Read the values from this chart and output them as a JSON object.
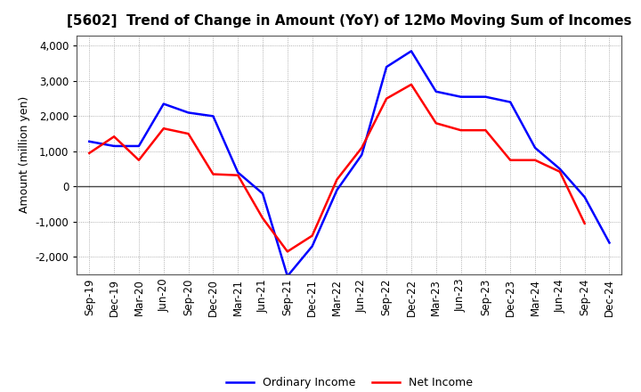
{
  "title": "[5602]  Trend of Change in Amount (YoY) of 12Mo Moving Sum of Incomes",
  "xlabel": "",
  "ylabel": "Amount (million yen)",
  "ylim": [
    -2500,
    4300
  ],
  "yticks": [
    -2000,
    -1000,
    0,
    1000,
    2000,
    3000,
    4000
  ],
  "x_labels": [
    "Sep-19",
    "Dec-19",
    "Mar-20",
    "Jun-20",
    "Sep-20",
    "Dec-20",
    "Mar-21",
    "Jun-21",
    "Sep-21",
    "Dec-21",
    "Mar-22",
    "Jun-22",
    "Sep-22",
    "Dec-22",
    "Mar-23",
    "Jun-23",
    "Sep-23",
    "Dec-23",
    "Mar-24",
    "Jun-24",
    "Sep-24",
    "Dec-24"
  ],
  "ordinary_income": [
    1280,
    1150,
    1150,
    2350,
    2100,
    2000,
    400,
    -200,
    -2550,
    -1700,
    -100,
    900,
    3400,
    3850,
    2700,
    2550,
    2550,
    2400,
    1100,
    500,
    -300,
    -1600
  ],
  "net_income": [
    950,
    1420,
    750,
    1650,
    1500,
    350,
    320,
    -900,
    -1850,
    -1400,
    200,
    1100,
    2500,
    2900,
    1800,
    1600,
    1600,
    750,
    750,
    420,
    -1050,
    null
  ],
  "ordinary_income_color": "#0000ff",
  "net_income_color": "#ff0000",
  "background_color": "#ffffff",
  "grid_color": "#999999",
  "zero_line_color": "#444444",
  "line_width": 1.8,
  "legend_labels": [
    "Ordinary Income",
    "Net Income"
  ],
  "title_fontsize": 11,
  "axis_fontsize": 9,
  "tick_fontsize": 8.5
}
